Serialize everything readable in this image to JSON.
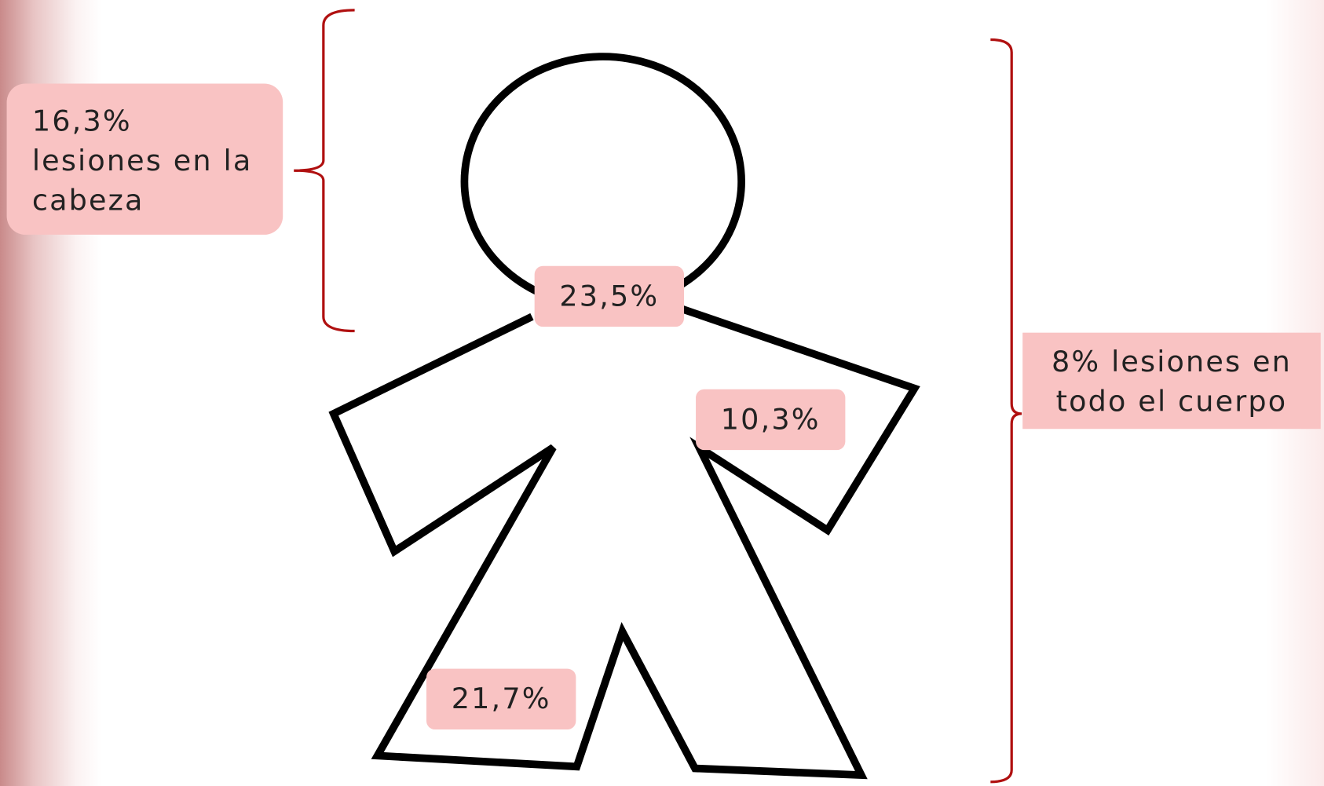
{
  "head_label": {
    "lines": [
      "16,3%",
      "lesiones en la",
      "cabeza"
    ]
  },
  "neck_label": "23,5%",
  "arm_label": "10,3%",
  "leg_label": "21,7%",
  "body_label": {
    "lines": [
      "8% lesiones en",
      "todo el cuerpo"
    ]
  }
}
